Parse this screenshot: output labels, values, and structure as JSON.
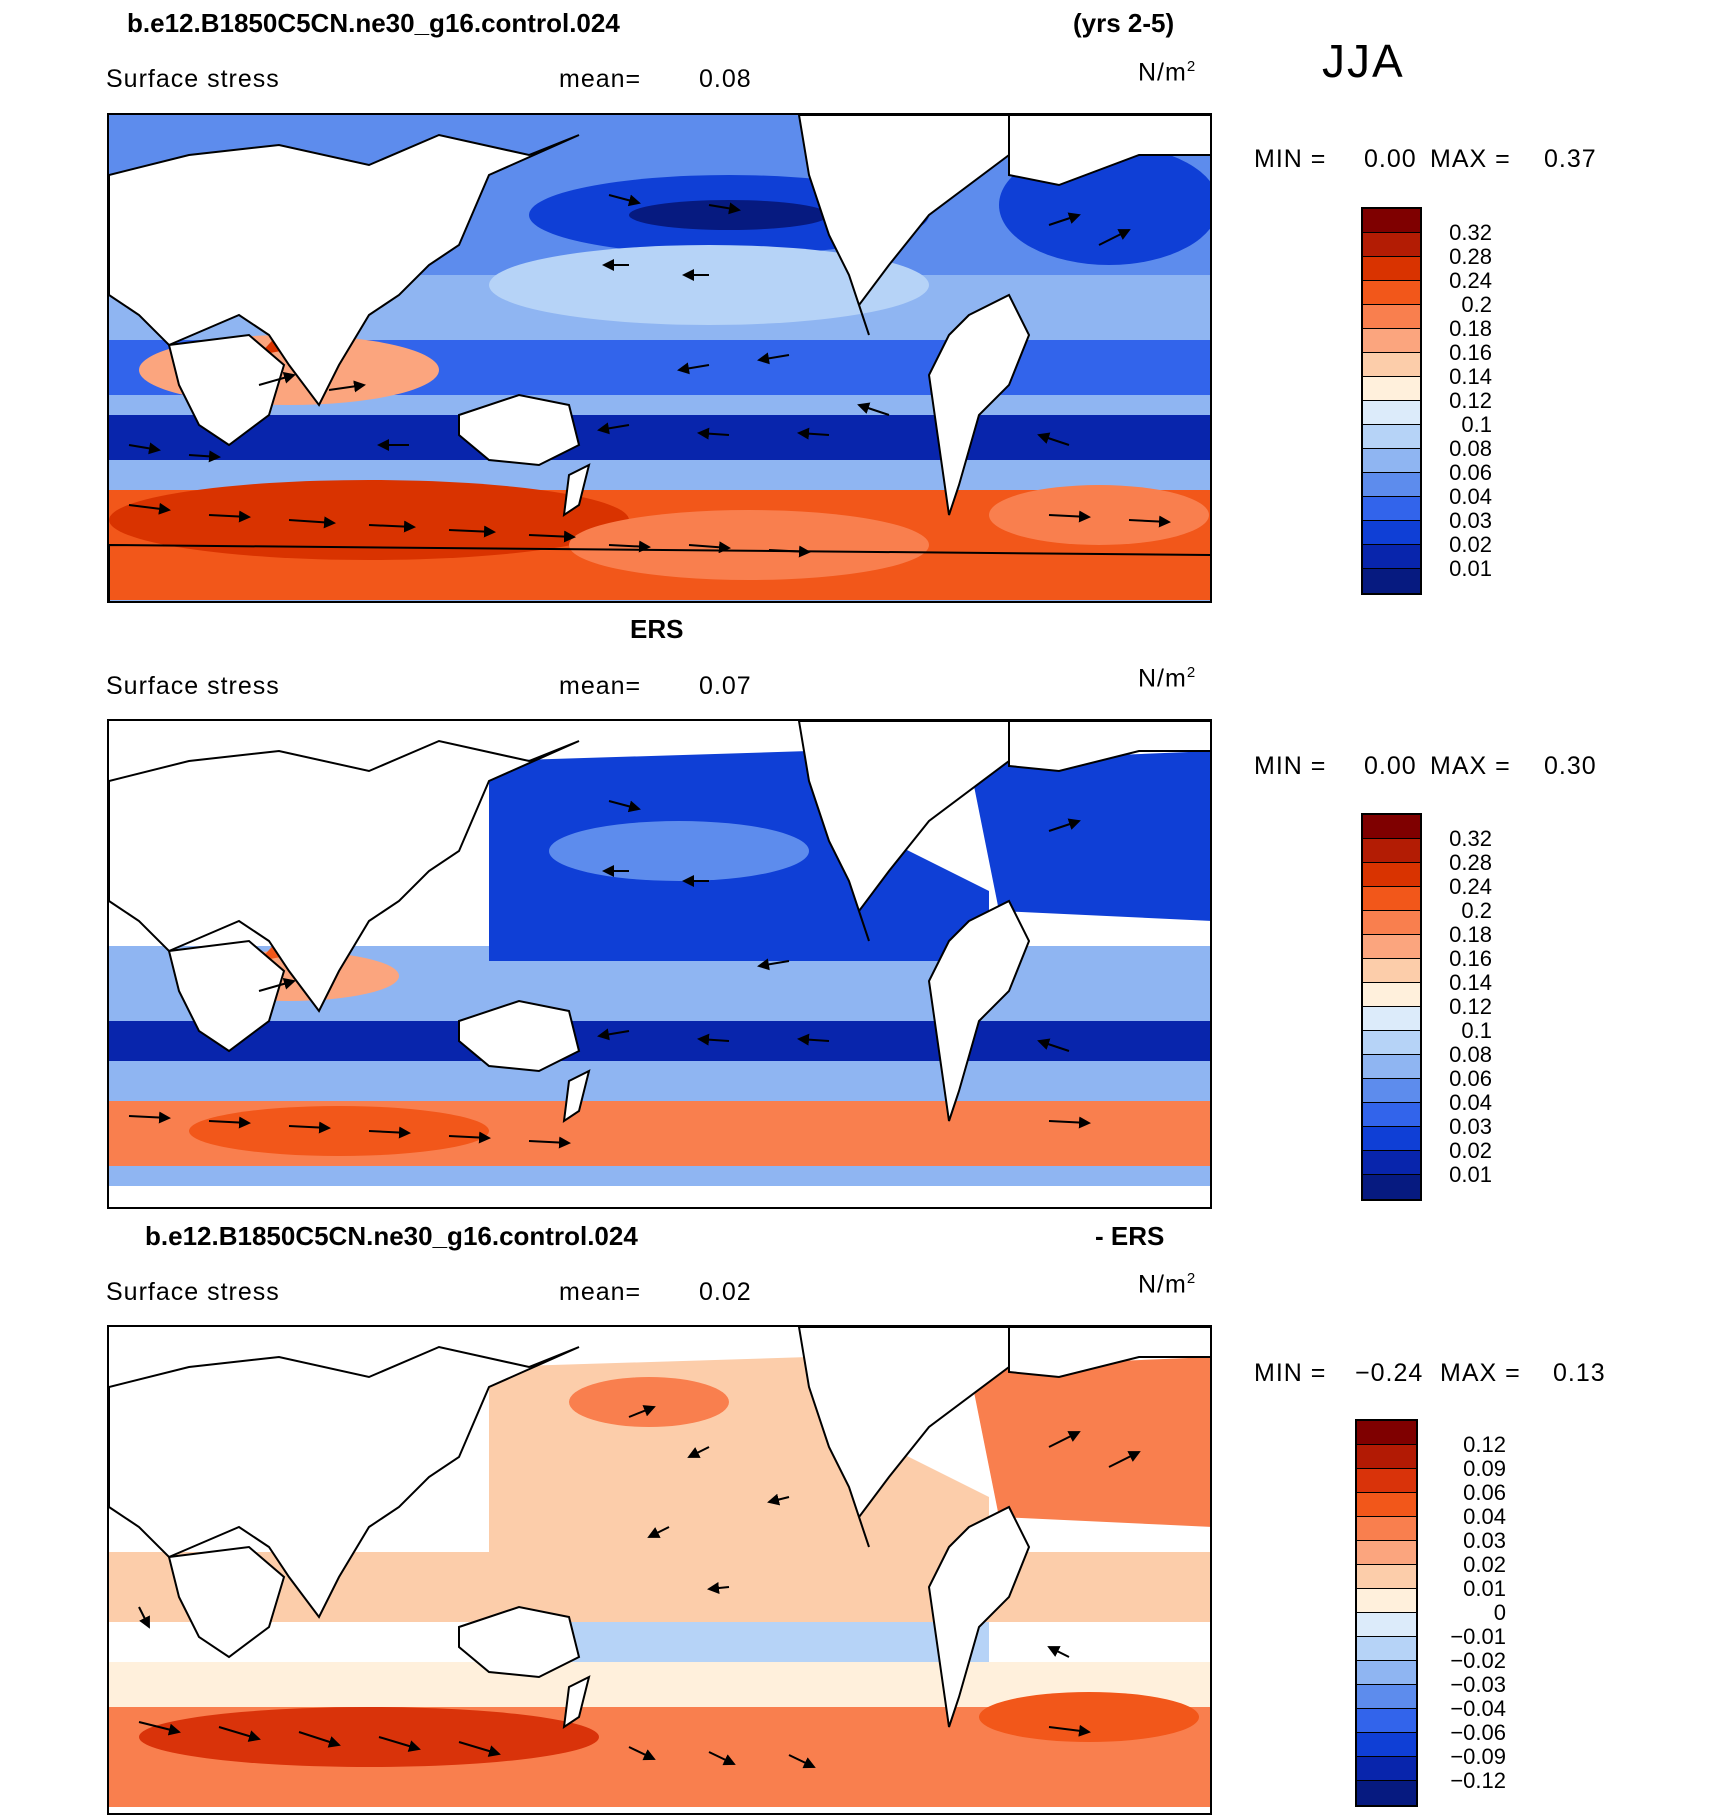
{
  "header": {
    "case_name": "b.e12.B1850C5CN.ne30_g16.control.024",
    "years": "(yrs 2-5)",
    "season": "JJA"
  },
  "panels": [
    {
      "title_left": "b.e12.B1850C5CN.ne30_g16.control.024",
      "title_right": "(yrs 2-5)",
      "variable": "Surface stress",
      "mean_label": "mean=",
      "mean_value": "0.08",
      "units_base": "N/m",
      "units_exp": "2",
      "min_label": "MIN =",
      "min_value": "0.00",
      "max_label": "MAX =",
      "max_value": "0.37",
      "colorbar_ticks": [
        "0.32",
        "0.28",
        "0.24",
        "0.2",
        "0.18",
        "0.16",
        "0.14",
        "0.12",
        "0.1",
        "0.08",
        "0.06",
        "0.04",
        "0.03",
        "0.02",
        "0.01"
      ]
    },
    {
      "title_left": "ERS",
      "title_right": "",
      "variable": "Surface stress",
      "mean_label": "mean=",
      "mean_value": "0.07",
      "units_base": "N/m",
      "units_exp": "2",
      "min_label": "MIN =",
      "min_value": "0.00",
      "max_label": "MAX =",
      "max_value": "0.30",
      "colorbar_ticks": [
        "0.32",
        "0.28",
        "0.24",
        "0.2",
        "0.18",
        "0.16",
        "0.14",
        "0.12",
        "0.1",
        "0.08",
        "0.06",
        "0.04",
        "0.03",
        "0.02",
        "0.01"
      ]
    },
    {
      "title_left": "b.e12.B1850C5CN.ne30_g16.control.024",
      "title_right": "- ERS",
      "variable": "Surface stress",
      "mean_label": "mean=",
      "mean_value": "0.02",
      "units_base": "N/m",
      "units_exp": "2",
      "min_label": "MIN =",
      "min_value": "−0.24",
      "max_label": "MAX =",
      "max_value": "0.13",
      "colorbar_ticks": [
        "0.12",
        "0.09",
        "0.06",
        "0.04",
        "0.03",
        "0.02",
        "0.01",
        "0",
        "−0.01",
        "−0.02",
        "−0.03",
        "−0.04",
        "−0.06",
        "−0.09",
        "−0.12"
      ]
    }
  ],
  "colors": {
    "abs_scale": [
      "#7f0000",
      "#b31c04",
      "#d93300",
      "#f2571a",
      "#f97f4e",
      "#fba57e",
      "#fccdaa",
      "#fff0dc",
      "#dcebfa",
      "#b6d3f7",
      "#8fb5f2",
      "#5d8ced",
      "#3264eb",
      "#0f3fd6",
      "#0825ac",
      "#061a80"
    ],
    "diff_scale": [
      "#7f0000",
      "#b21a04",
      "#d9330a",
      "#f2571a",
      "#f97f4e",
      "#fba57e",
      "#fccdaa",
      "#fff0dc",
      "#dcebfa",
      "#b6d3f7",
      "#8fb5f2",
      "#5d8ced",
      "#3264eb",
      "#0f3fd6",
      "#0825ac",
      "#061a80"
    ]
  }
}
